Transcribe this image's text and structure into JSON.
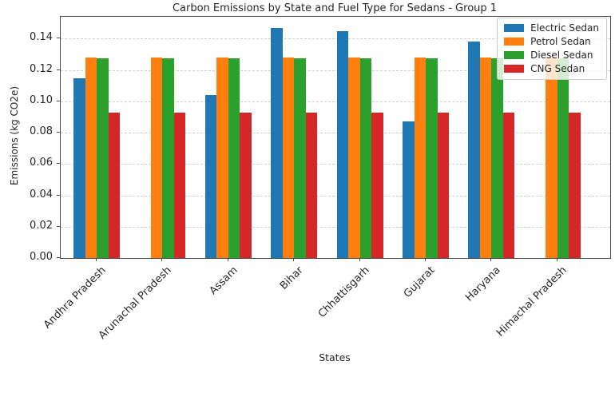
{
  "chart_data": {
    "type": "bar",
    "title": "Carbon Emissions by State and Fuel Type for Sedans - Group 1",
    "xlabel": "States",
    "ylabel": "Emissions (kg CO2e)",
    "categories": [
      "Andhra Pradesh",
      "Arunachal Pradesh",
      "Assam",
      "Bihar",
      "Chhattisgarh",
      "Gujarat",
      "Haryana",
      "Himachal Pradesh"
    ],
    "series": [
      {
        "name": "Electric Sedan",
        "color": "#1f77b4",
        "values": [
          0.115,
          0,
          0.104,
          0.147,
          0.145,
          0.087,
          0.138,
          0
        ]
      },
      {
        "name": "Petrol Sedan",
        "color": "#ff7f0e",
        "values": [
          0.128,
          0.128,
          0.128,
          0.128,
          0.128,
          0.128,
          0.128,
          0.128
        ]
      },
      {
        "name": "Diesel Sedan",
        "color": "#2ca02c",
        "values": [
          0.1275,
          0.1275,
          0.1275,
          0.1275,
          0.1275,
          0.1275,
          0.1275,
          0.1275
        ]
      },
      {
        "name": "CNG Sedan",
        "color": "#d62728",
        "values": [
          0.093,
          0.093,
          0.093,
          0.093,
          0.093,
          0.093,
          0.093,
          0.093
        ]
      }
    ],
    "ylim": [
      0,
      0.154
    ],
    "yticks": [
      "0.00",
      "0.02",
      "0.04",
      "0.06",
      "0.08",
      "0.10",
      "0.12",
      "0.14"
    ],
    "grid": true,
    "grid_style": "dashed",
    "legend_position": "upper right"
  }
}
